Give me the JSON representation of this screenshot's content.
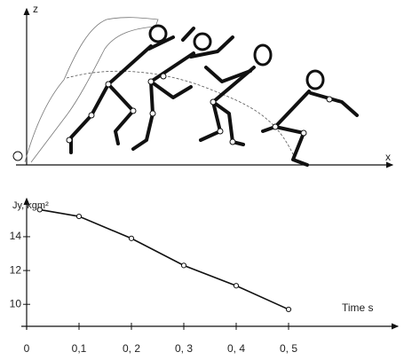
{
  "diagram": {
    "z_label": "z",
    "x_label": "x"
  },
  "chart_data": {
    "type": "line",
    "y_label": "Jy, kgm²",
    "x_label": "Time   s",
    "x": [
      0.025,
      0.1,
      0.2,
      0.3,
      0.4,
      0.5
    ],
    "series": [
      {
        "color": "#111",
        "values": [
          15.6,
          15.2,
          13.9,
          12.3,
          11.1,
          9.7
        ]
      }
    ],
    "xlim": [
      0,
      0.7
    ],
    "ylim": [
      8.7,
      16.2
    ],
    "xticks": [
      0,
      {
        "value": 0.1,
        "label": "0,1"
      },
      {
        "value": 0.2,
        "label": "0, 2"
      },
      {
        "value": 0.3,
        "label": "0, 3"
      },
      {
        "value": 0.4,
        "label": "0, 4"
      },
      {
        "value": 0.5,
        "label": "0, 5"
      }
    ],
    "yticks": [
      10,
      12,
      14
    ]
  }
}
